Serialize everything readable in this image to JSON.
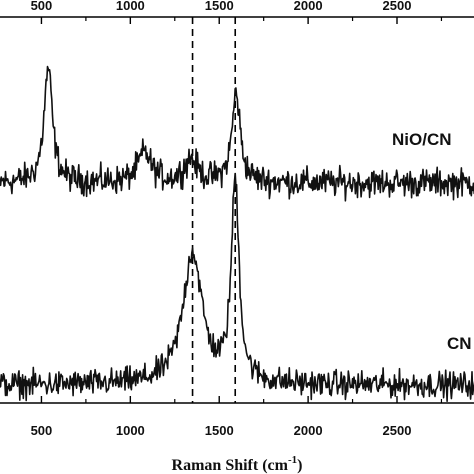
{
  "chart_data": {
    "type": "line",
    "title": "",
    "xlabel": "Raman Shift (cm",
    "xlabel_sup": "-1",
    "xlabel_close": ")",
    "ylabel": "",
    "xlim": [
      250,
      2950
    ],
    "x_ticks": [
      500,
      1000,
      1500,
      2000,
      2500
    ],
    "x_tick_labels": [
      "500",
      "1000",
      "1500",
      "2000",
      "2500"
    ],
    "top_tick_labels": [
      "500",
      "1000",
      "1500",
      "2000",
      "2500"
    ],
    "bottom_tick_labels": [
      "500",
      "1000",
      "1500",
      "2000",
      "2500"
    ],
    "y_ticks_shown": false,
    "grid": false,
    "legend": "none",
    "reference_lines_x": [
      1350,
      1590
    ],
    "series": [
      {
        "name": "NiO/CN",
        "color": "#111111",
        "baseline": 0.0,
        "noise": 0.055,
        "peaks": [
          {
            "x": 538,
            "height": 1.0,
            "width": 28
          },
          {
            "x": 1080,
            "height": 0.26,
            "width": 45
          },
          {
            "x": 1340,
            "height": 0.2,
            "width": 45
          },
          {
            "x": 1595,
            "height": 0.78,
            "width": 28
          }
        ]
      },
      {
        "name": "CN",
        "color": "#111111",
        "baseline": 0.0,
        "noise": 0.05,
        "peaks": [
          {
            "x": 1350,
            "height": 1.12,
            "width": 65
          },
          {
            "x": 1590,
            "height": 1.7,
            "width": 26
          }
        ]
      }
    ]
  }
}
